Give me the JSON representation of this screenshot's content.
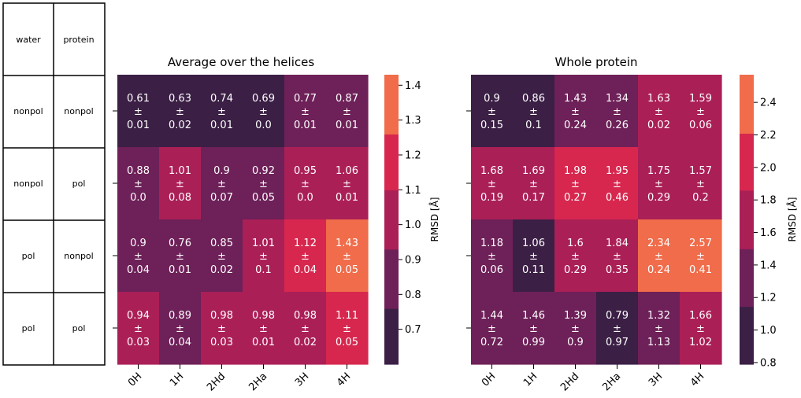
{
  "side_table": {
    "headers": [
      "water",
      "protein"
    ],
    "rows": [
      [
        "nonpol",
        "nonpol"
      ],
      [
        "nonpol",
        "pol"
      ],
      [
        "pol",
        "nonpol"
      ],
      [
        "pol",
        "pol"
      ]
    ]
  },
  "colors": {
    "dark": "#3b1f45",
    "purple": "#6e2058",
    "magenta": "#ab1f57",
    "crimson": "#d7274e",
    "orange": "#f06c4a",
    "peach": "#f5ac84"
  },
  "chart_data": [
    {
      "type": "heatmap",
      "title": "Average over the helices",
      "xlabel": "",
      "ylabel": "",
      "categories": [
        "0H",
        "1H",
        "2Hd",
        "2Ha",
        "3H",
        "4H"
      ],
      "rows": [
        "nonpol / nonpol",
        "nonpol / pol",
        "pol / nonpol",
        "pol / pol"
      ],
      "mean": [
        [
          0.61,
          0.63,
          0.74,
          0.69,
          0.77,
          0.87
        ],
        [
          0.88,
          1.01,
          0.9,
          0.92,
          0.95,
          1.06
        ],
        [
          0.9,
          0.76,
          0.85,
          1.01,
          1.12,
          1.43
        ],
        [
          0.94,
          0.89,
          0.98,
          0.98,
          0.98,
          1.11
        ]
      ],
      "error": [
        [
          "0.01",
          "0.02",
          "0.01",
          "0.0",
          "0.01",
          "0.01"
        ],
        [
          "0.0",
          "0.08",
          "0.07",
          "0.05",
          "0.0",
          "0.01"
        ],
        [
          "0.04",
          "0.01",
          "0.02",
          "0.1",
          "0.04",
          "0.05"
        ],
        [
          "0.03",
          "0.04",
          "0.03",
          "0.01",
          "0.02",
          "0.05"
        ]
      ],
      "mean_labels": [
        [
          "0.61",
          "0.63",
          "0.74",
          "0.69",
          "0.77",
          "0.87"
        ],
        [
          "0.88",
          "1.01",
          "0.9",
          "0.92",
          "0.95",
          "1.06"
        ],
        [
          "0.9",
          "0.76",
          "0.85",
          "1.01",
          "1.12",
          "1.43"
        ],
        [
          "0.94",
          "0.89",
          "0.98",
          "0.98",
          "0.98",
          "1.11"
        ]
      ],
      "colorbar": {
        "label": "RMSD [Å]",
        "range": [
          0.6,
          1.43
        ],
        "ticks": [
          "0.7",
          "0.8",
          "0.9",
          "1.0",
          "1.1",
          "1.2",
          "1.3",
          "1.4"
        ],
        "bins": [
          0.6,
          0.76,
          0.93,
          1.1,
          1.26,
          1.43
        ]
      }
    },
    {
      "type": "heatmap",
      "title": "Whole protein",
      "xlabel": "",
      "ylabel": "",
      "categories": [
        "0H",
        "1H",
        "2Hd",
        "2Ha",
        "3H",
        "4H"
      ],
      "rows": [
        "nonpol / nonpol",
        "nonpol / pol",
        "pol / nonpol",
        "pol / pol"
      ],
      "mean": [
        [
          0.9,
          0.86,
          1.43,
          1.34,
          1.63,
          1.59
        ],
        [
          1.68,
          1.69,
          1.98,
          1.95,
          1.75,
          1.57
        ],
        [
          1.18,
          1.06,
          1.6,
          1.84,
          2.34,
          2.57
        ],
        [
          1.44,
          1.46,
          1.39,
          0.79,
          1.32,
          1.66
        ]
      ],
      "error": [
        [
          "0.15",
          "0.1",
          "0.24",
          "0.26",
          "0.02",
          "0.06"
        ],
        [
          "0.19",
          "0.17",
          "0.27",
          "0.46",
          "0.29",
          "0.2"
        ],
        [
          "0.06",
          "0.11",
          "0.29",
          "0.35",
          "0.24",
          "0.41"
        ],
        [
          "0.72",
          "0.99",
          "0.9",
          "0.97",
          "1.13",
          "1.02"
        ]
      ],
      "mean_labels": [
        [
          "0.9",
          "0.86",
          "1.43",
          "1.34",
          "1.63",
          "1.59"
        ],
        [
          "1.68",
          "1.69",
          "1.98",
          "1.95",
          "1.75",
          "1.57"
        ],
        [
          "1.18",
          "1.06",
          "1.6",
          "1.84",
          "2.34",
          "2.57"
        ],
        [
          "1.44",
          "1.46",
          "1.39",
          "0.79",
          "1.32",
          "1.66"
        ]
      ],
      "colorbar": {
        "label": "RMSD [Å]",
        "range": [
          0.79,
          2.57
        ],
        "ticks": [
          "0.8",
          "1.0",
          "1.2",
          "1.4",
          "1.6",
          "1.8",
          "2.0",
          "2.2",
          "2.4"
        ],
        "bins": [
          0.79,
          1.145,
          1.5,
          1.86,
          2.21,
          2.57
        ]
      }
    }
  ]
}
